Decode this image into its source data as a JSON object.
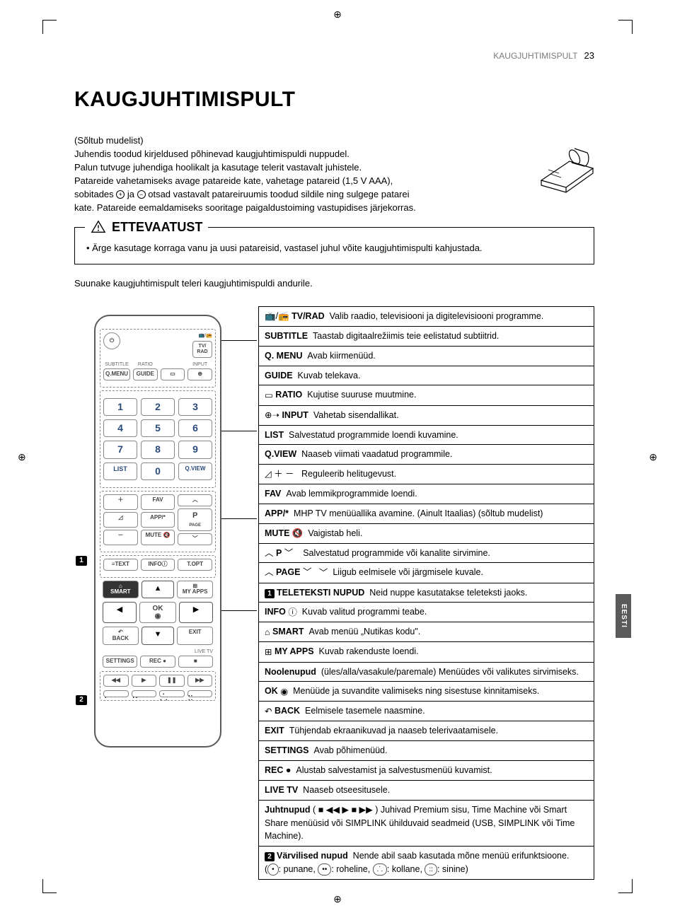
{
  "page": {
    "running_section": "KAUGJUHTIMISPULT",
    "page_number": "23",
    "title": "KAUGJUHTIMISPULT",
    "side_tab": "EESTI"
  },
  "intro": {
    "depends": "(Sõltub mudelist)",
    "l1": "Juhendis toodud kirjeldused põhinevad kaugjuhtimispuldi nuppudel.",
    "l2": "Palun tutvuge juhendiga hoolikalt ja kasutage telerit vastavalt juhistele.",
    "l3": "Patareide vahetamiseks avage patareide kate, vahetage patareid (1,5 V AAA),",
    "l4_a": "sobitades ",
    "l4_b": " ja ",
    "l4_c": " otsad vastavalt patareiruumis toodud sildile ning sulgege patarei",
    "l5": "kate. Patareide eemaldamiseks sooritage paigaldustoiming vastupidises järjekorras."
  },
  "caution": {
    "title": "ETTEVAATUST",
    "item1": "Ärge kasutage korraga vanu ja uusi patareisid, vastasel juhul võite kaugjuhtimispulti kahjustada."
  },
  "direct": "Suunake kaugjuhtimispult teleri kaugjuhtimispuldi andurile.",
  "remote": {
    "tvrad": "TV/\nRAD",
    "subtitle": "SUBTITLE",
    "ratio": "RATIO",
    "input": "INPUT",
    "qmenu": "Q.MENU",
    "guide": "GUIDE",
    "list": "LIST",
    "qview": "Q.VIEW",
    "fav": "FAV",
    "app": "APP/*",
    "mute": "MUTE",
    "p": "P",
    "page": "PAGE",
    "text": "TEXT",
    "info": "INFO",
    "topt": "T.OPT",
    "smart": "SMART",
    "myapps": "MY APPS",
    "ok": "OK",
    "back": "BACK",
    "exit": "EXIT",
    "livetv": "LIVE TV",
    "settings": "SETTINGS",
    "rec": "REC"
  },
  "callouts": {
    "c1": "1",
    "c2": "2"
  },
  "desc": [
    {
      "pre_icon": "tvrad",
      "key": "TV/RAD",
      "text": "Valib raadio, televisiooni ja digitelevisiooni programme."
    },
    {
      "key": "SUBTITLE",
      "text": "Taastab digitaalrežiimis teie eelistatud subtiitrid."
    },
    {
      "key": "Q. MENU",
      "text": "Avab kiirmenüüd."
    },
    {
      "key": "GUIDE",
      "text": "Kuvab telekava."
    },
    {
      "pre_icon": "ratio",
      "key": "RATIO",
      "text": "Kujutise suuruse muutmine."
    },
    {
      "pre_icon": "input",
      "key": "INPUT",
      "text": "Vahetab sisendallikat."
    },
    {
      "key": "LIST",
      "text": "Salvestatud programmide loendi kuvamine."
    },
    {
      "key": "Q.VIEW",
      "text": "Naaseb viimati vaadatud programmile.",
      "gap_after": true
    },
    {
      "pre_icon": "vol",
      "text": "Reguleerib helitugevust."
    },
    {
      "key": "FAV",
      "text": "Avab lemmikprogrammide loendi."
    },
    {
      "key": "APP/*",
      "text": "MHP TV menüüallika avamine. (Ainult Itaalias) (sõltub mudelist)"
    },
    {
      "key": "MUTE",
      "post_icon": "mute",
      "text": "Vaigistab heli."
    },
    {
      "pre_icon": "updn",
      "mid": "P",
      "text": "Salvestatud programmide või kanalite sirvimine."
    },
    {
      "pre_icon": "up",
      "mid": "PAGE",
      "post_icon": "down",
      "text": "Liigub eelmisele või järgmisele kuvale.",
      "gap_after": true
    },
    {
      "badge": "1",
      "key": "TELETEKSTI NUPUD",
      "text": "Neid nuppe kasutatakse teleteksti jaoks."
    },
    {
      "key": "INFO",
      "post_icon": "info",
      "text": "Kuvab valitud programmi teabe."
    },
    {
      "pre_icon": "home",
      "key": "SMART",
      "text": "Avab menüü „Nutikas kodu\"."
    },
    {
      "pre_icon": "grid",
      "key": "MY APPS",
      "text": "Kuvab rakenduste loendi."
    },
    {
      "key": "Noolenupud",
      "text": "(üles/alla/vasakule/paremale) Menüüdes või valikutes sirvimiseks."
    },
    {
      "key": "OK",
      "post_icon": "target",
      "text": "Menüüde ja suvandite valimiseks ning sisestuse kinnitamiseks."
    },
    {
      "pre_icon": "back",
      "key": "BACK",
      "text": "Eelmisele tasemele naasmine."
    },
    {
      "key": "EXIT",
      "text": "Tühjendab ekraanikuvad ja naaseb telerivaatamisele."
    },
    {
      "key": "SETTINGS",
      "text": "Avab põhimenüüd."
    },
    {
      "key": "REC",
      "post_icon": "rec",
      "text": "Alustab salvestamist ja salvestusmenüü kuvamist."
    },
    {
      "key": "LIVE TV",
      "text": "Naaseb otseesitusele."
    },
    {
      "key": "Juhtnupud",
      "text_html": "( ■  ◀◀  ▶  ■  ▶▶ ) Juhivad Premium sisu, Time Machine või Smart Share menüüsid või SIMPLINK ühilduvaid seadmeid (USB, SIMPLINK või Time Machine)."
    },
    {
      "badge": "2",
      "key": "Värvilised nupud",
      "text": "Nende abil saab kasutada mõne menüü erifunktsioone.",
      "colors": true
    }
  ],
  "colors_legend": {
    "red": ": punane, ",
    "green": ": roheline, ",
    "yellow": ": kollane, ",
    "blue": ": sinine)"
  }
}
